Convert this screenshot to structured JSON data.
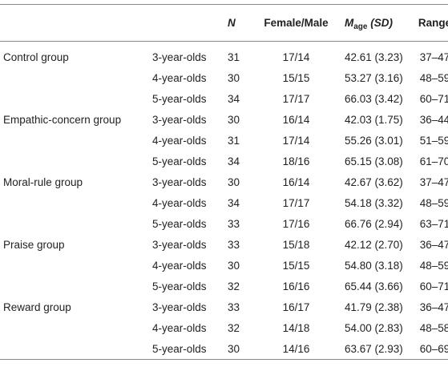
{
  "table": {
    "headers": {
      "group": "",
      "age": "",
      "n": "N",
      "female_male": "Female/Male",
      "mage_m": "M",
      "mage_sub": "age",
      "mage_sd": "(SD)",
      "range": "Range"
    },
    "groups": [
      {
        "name": "Control group",
        "rows": [
          {
            "age": "3-year-olds",
            "n": "31",
            "fm": "17/14",
            "mage": "42.61 (3.23)",
            "range": "37–47"
          },
          {
            "age": "4-year-olds",
            "n": "30",
            "fm": "15/15",
            "mage": "53.27 (3.16)",
            "range": "48–59"
          },
          {
            "age": "5-year-olds",
            "n": "34",
            "fm": "17/17",
            "mage": "66.03 (3.42)",
            "range": "60–71"
          }
        ]
      },
      {
        "name": "Empathic-concern group",
        "rows": [
          {
            "age": "3-year-olds",
            "n": "30",
            "fm": "16/14",
            "mage": "42.03 (1.75)",
            "range": "36–44"
          },
          {
            "age": "4-year-olds",
            "n": "31",
            "fm": "17/14",
            "mage": "55.26 (3.01)",
            "range": "51–59"
          },
          {
            "age": "5-year-olds",
            "n": "34",
            "fm": "18/16",
            "mage": "65.15 (3.08)",
            "range": "61–70"
          }
        ]
      },
      {
        "name": "Moral-rule group",
        "rows": [
          {
            "age": "3-year-olds",
            "n": "30",
            "fm": "16/14",
            "mage": "42.67 (3.62)",
            "range": "37–47"
          },
          {
            "age": "4-year-olds",
            "n": "34",
            "fm": "17/17",
            "mage": "54.18 (3.32)",
            "range": "48–59"
          },
          {
            "age": "5-year-olds",
            "n": "33",
            "fm": "17/16",
            "mage": "66.76 (2.94)",
            "range": "63–71"
          }
        ]
      },
      {
        "name": "Praise group",
        "rows": [
          {
            "age": "3-year-olds",
            "n": "33",
            "fm": "15/18",
            "mage": "42.12 (2.70)",
            "range": "36–47"
          },
          {
            "age": "4-year-olds",
            "n": "30",
            "fm": "15/15",
            "mage": "54.80 (3.18)",
            "range": "48–59"
          },
          {
            "age": "5-year-olds",
            "n": "32",
            "fm": "16/16",
            "mage": "65.44 (3.66)",
            "range": "60–71"
          }
        ]
      },
      {
        "name": "Reward group",
        "rows": [
          {
            "age": "3-year-olds",
            "n": "33",
            "fm": "16/17",
            "mage": "41.79 (2.38)",
            "range": "36–47"
          },
          {
            "age": "4-year-olds",
            "n": "32",
            "fm": "14/18",
            "mage": "54.00 (2.83)",
            "range": "48–58"
          },
          {
            "age": "5-year-olds",
            "n": "30",
            "fm": "14/16",
            "mage": "63.67 (2.93)",
            "range": "60–69"
          }
        ]
      }
    ]
  }
}
